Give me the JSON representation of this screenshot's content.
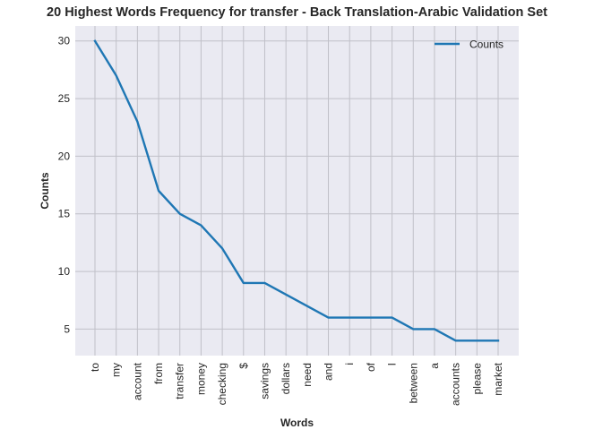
{
  "chart_data": {
    "type": "line",
    "title": "20 Highest Words Frequency for transfer - Back Translation-Arabic Validation Set",
    "xlabel": "Words",
    "ylabel": "Counts",
    "categories": [
      "to",
      "my",
      "account",
      "from",
      "transfer",
      "money",
      "checking",
      "$",
      "savings",
      "dollars",
      "need",
      "and",
      "i",
      "of",
      "I",
      "between",
      "a",
      "accounts",
      "please",
      "market"
    ],
    "series": [
      {
        "name": "Counts",
        "values": [
          30,
          27,
          23,
          17,
          15,
          14,
          12,
          9,
          9,
          8,
          7,
          6,
          6,
          6,
          6,
          5,
          5,
          4,
          4,
          4
        ],
        "color": "#1f77b4"
      }
    ],
    "yticks": [
      5,
      10,
      15,
      20,
      25,
      30
    ],
    "ylim": [
      2.7,
      31.3
    ],
    "grid": true,
    "legend": "top-right",
    "background_color": "#eaeaf2",
    "grid_color": "#c0c0c8"
  }
}
